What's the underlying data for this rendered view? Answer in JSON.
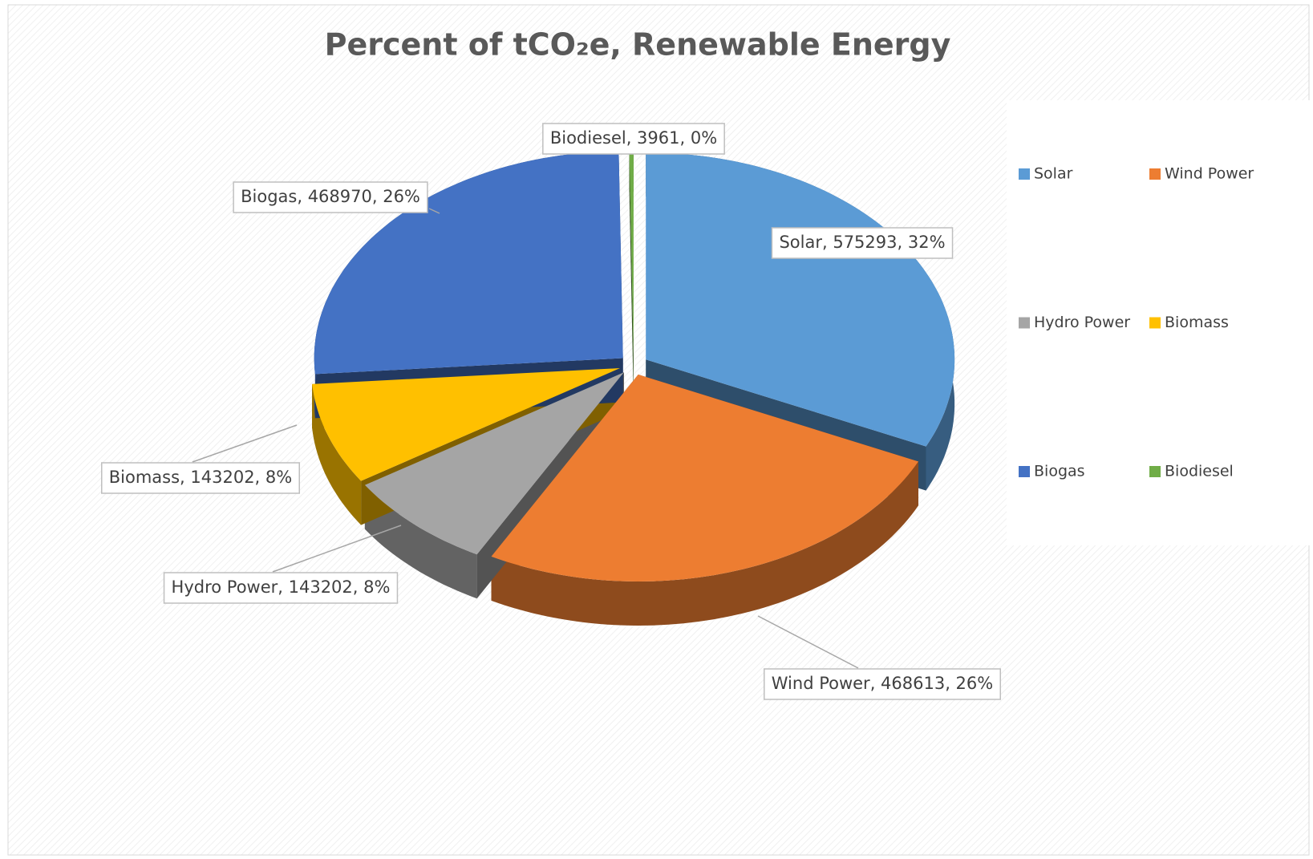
{
  "chart_data": {
    "type": "pie3d",
    "title": "Percent of tCO₂e, Renewable Energy",
    "categories": [
      "Solar",
      "Wind Power",
      "Hydro Power",
      "Biomass",
      "Biogas",
      "Biodiesel"
    ],
    "values": [
      575293,
      468613,
      143202,
      143202,
      468970,
      3961
    ],
    "value_labels": [
      "Solar, 575293, 32%",
      "Wind Power, 468613, 26%",
      "Hydro Power, 143202, 8%",
      "Biomass, 143202, 8%",
      "Biogas, 468970, 26%",
      "Biodiesel, 3961, 0%"
    ],
    "colors": [
      "#5b9bd5",
      "#ed7d31",
      "#a5a5a5",
      "#ffc000",
      "#4472c4",
      "#70ad47"
    ],
    "legend": "right"
  }
}
